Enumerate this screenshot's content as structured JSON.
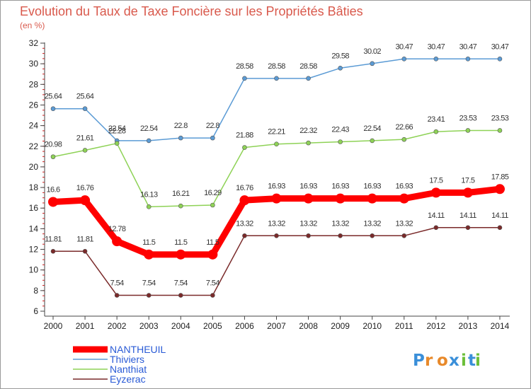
{
  "chart_data": {
    "type": "line",
    "title": "Evolution du Taux de Taxe Foncière sur les Propriétés Bâties",
    "unit": "(en %)",
    "categories": [
      "2000",
      "2001",
      "2002",
      "2003",
      "2004",
      "2005",
      "2006",
      "2007",
      "2008",
      "2009",
      "2010",
      "2011",
      "2012",
      "2013",
      "2014"
    ],
    "ylim": [
      6,
      32
    ],
    "yticks": [
      6,
      8,
      10,
      12,
      14,
      16,
      18,
      20,
      22,
      24,
      26,
      28,
      30,
      32
    ],
    "grid": false,
    "legend_position": "bottom-left",
    "series": [
      {
        "name": "NANTHEUIL",
        "color": "#ff0000",
        "legend_color": "#2a5bd6",
        "values": [
          16.6,
          16.76,
          12.78,
          11.5,
          11.5,
          11.5,
          16.76,
          16.93,
          16.93,
          16.93,
          16.93,
          16.93,
          17.5,
          17.5,
          17.85
        ],
        "labels": [
          "16.6",
          "16.76",
          "12.78",
          "11.5",
          "11.5",
          "11.5",
          "16.76",
          "16.93",
          "16.93",
          "16.93",
          "16.93",
          "16.93",
          "17.5",
          "17.5",
          "17.85"
        ]
      },
      {
        "name": "Thiviers",
        "color": "#5b9bd5",
        "legend_color": "#2a5bd6",
        "values": [
          25.64,
          25.64,
          22.54,
          22.54,
          22.8,
          22.8,
          28.58,
          28.58,
          28.58,
          29.58,
          30.02,
          30.47,
          30.47,
          30.47,
          30.47
        ],
        "labels": [
          "25.64",
          "25.64",
          "22.54",
          "22.54",
          "22.8",
          "22.8",
          "28.58",
          "28.58",
          "28.58",
          "29.58",
          "30.02",
          "30.47",
          "30.47",
          "30.47",
          "30.47"
        ]
      },
      {
        "name": "Nanthiat",
        "color": "#8ed256",
        "legend_color": "#2a5bd6",
        "values": [
          20.98,
          21.61,
          22.28,
          16.13,
          16.21,
          16.29,
          21.88,
          22.21,
          22.32,
          22.43,
          22.54,
          22.66,
          23.41,
          23.53,
          23.53
        ],
        "labels": [
          "20.98",
          "21.61",
          "22.28",
          "16.13",
          "16.21",
          "16.29",
          "21.88",
          "22.21",
          "22.32",
          "22.43",
          "22.54",
          "22.66",
          "23.41",
          "23.53",
          "23.53"
        ]
      },
      {
        "name": "Eyzerac",
        "color": "#7a2a2a",
        "legend_color": "#2a5bd6",
        "values": [
          11.81,
          11.81,
          7.54,
          7.54,
          7.54,
          7.54,
          13.32,
          13.32,
          13.32,
          13.32,
          13.32,
          13.32,
          14.11,
          14.11,
          14.11
        ],
        "labels": [
          "11.81",
          "11.81",
          "7.54",
          "7.54",
          "7.54",
          "7.54",
          "13.32",
          "13.32",
          "13.32",
          "13.32",
          "13.32",
          "13.32",
          "14.11",
          "14.11",
          "14.11"
        ]
      }
    ]
  },
  "watermark": {
    "text": "Proxiti"
  }
}
